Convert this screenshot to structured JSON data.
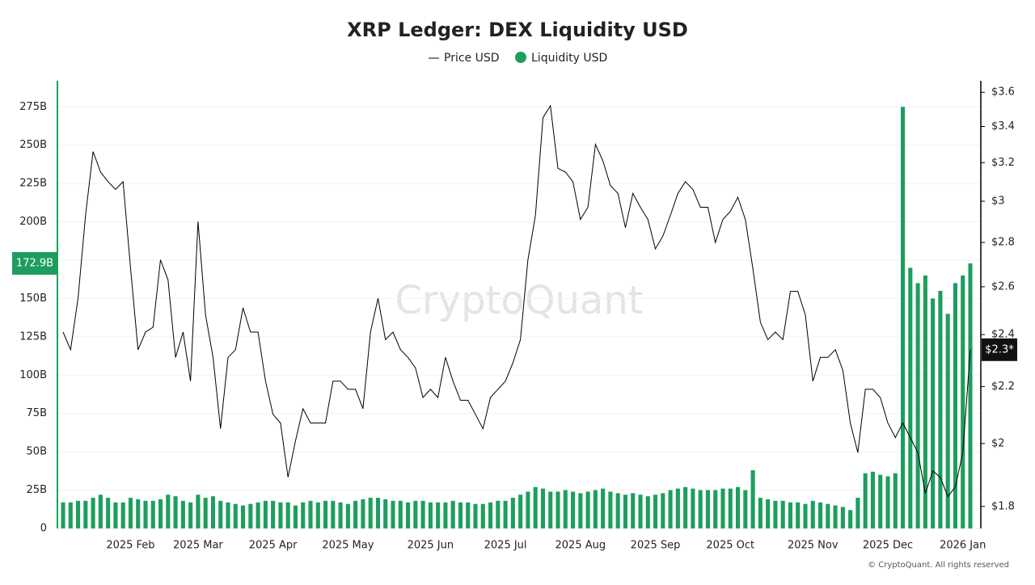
{
  "chart_data": {
    "type": "combo",
    "title": "XRP Ledger: DEX Liquidity USD",
    "watermark": "CryptoQuant",
    "footer": "© CryptoQuant. All rights reserved",
    "categories": [
      null,
      null,
      null,
      null,
      null,
      null,
      null,
      null,
      null,
      "2025 Feb",
      null,
      null,
      null,
      null,
      null,
      null,
      null,
      null,
      "2025 Mar",
      null,
      null,
      null,
      null,
      null,
      null,
      null,
      null,
      null,
      "2025 Apr",
      null,
      null,
      null,
      null,
      null,
      null,
      null,
      null,
      null,
      "2025 May",
      null,
      null,
      null,
      null,
      null,
      null,
      null,
      null,
      null,
      null,
      "2025 Jun",
      null,
      null,
      null,
      null,
      null,
      null,
      null,
      null,
      null,
      "2025 Jul",
      null,
      null,
      null,
      null,
      null,
      null,
      null,
      null,
      null,
      "2025 Aug",
      null,
      null,
      null,
      null,
      null,
      null,
      null,
      null,
      null,
      "2025 Sep",
      null,
      null,
      null,
      null,
      null,
      null,
      null,
      null,
      null,
      "2025 Oct",
      null,
      null,
      null,
      null,
      null,
      null,
      null,
      null,
      null,
      null,
      "2025 Nov",
      null,
      null,
      null,
      null,
      null,
      null,
      null,
      null,
      null,
      "2025 Dec",
      null,
      null,
      null,
      null,
      null,
      null,
      null,
      null,
      null,
      "2026 Jan",
      null
    ],
    "series": [
      {
        "name": "Price USD",
        "type": "line",
        "axis": "y2",
        "color": "#000000",
        "values": [
          2.41,
          2.34,
          2.55,
          2.93,
          3.26,
          3.15,
          3.1,
          3.06,
          3.1,
          2.68,
          2.34,
          2.41,
          2.43,
          2.72,
          2.63,
          2.31,
          2.41,
          2.22,
          2.9,
          2.48,
          2.31,
          2.05,
          2.31,
          2.34,
          2.51,
          2.41,
          2.41,
          2.22,
          2.1,
          2.07,
          1.89,
          2.01,
          2.12,
          2.07,
          2.07,
          2.07,
          2.22,
          2.22,
          2.19,
          2.19,
          2.12,
          2.41,
          2.55,
          2.38,
          2.41,
          2.34,
          2.31,
          2.27,
          2.16,
          2.19,
          2.16,
          2.31,
          2.22,
          2.15,
          2.15,
          2.1,
          2.05,
          2.16,
          2.19,
          2.22,
          2.29,
          2.38,
          2.72,
          2.93,
          3.45,
          3.52,
          3.17,
          3.15,
          3.1,
          2.91,
          2.97,
          3.3,
          3.21,
          3.08,
          3.04,
          2.87,
          3.04,
          2.97,
          2.91,
          2.77,
          2.83,
          2.93,
          3.04,
          3.1,
          3.06,
          2.97,
          2.97,
          2.8,
          2.91,
          2.95,
          3.02,
          2.91,
          2.68,
          2.45,
          2.38,
          2.41,
          2.38,
          2.58,
          2.58,
          2.48,
          2.22,
          2.31,
          2.31,
          2.34,
          2.26,
          2.07,
          1.97,
          2.19,
          2.19,
          2.16,
          2.07,
          2.02,
          2.07,
          2.02,
          1.97,
          1.84,
          1.91,
          1.89,
          1.83,
          1.86,
          1.97,
          2.34
        ]
      },
      {
        "name": "Liquidity USD",
        "type": "bar",
        "axis": "y",
        "color": "#1e9e5e",
        "values": [
          17,
          17,
          18,
          18,
          20,
          22,
          20,
          17,
          17,
          20,
          19,
          18,
          18,
          19,
          22,
          21,
          18,
          17,
          22,
          20,
          21,
          18,
          17,
          16,
          15,
          16,
          17,
          18,
          18,
          17,
          17,
          15,
          17,
          18,
          17,
          18,
          18,
          17,
          16,
          18,
          19,
          20,
          20,
          19,
          18,
          18,
          17,
          18,
          18,
          17,
          17,
          17,
          18,
          17,
          17,
          16,
          16,
          17,
          18,
          18,
          20,
          22,
          24,
          27,
          26,
          24,
          24,
          25,
          24,
          23,
          24,
          25,
          26,
          24,
          23,
          22,
          23,
          22,
          21,
          22,
          23,
          25,
          26,
          27,
          26,
          25,
          25,
          25,
          26,
          26,
          27,
          25,
          38,
          20,
          19,
          18,
          18,
          17,
          17,
          16,
          18,
          17,
          16,
          15,
          14,
          12,
          20,
          36,
          37,
          35,
          34,
          36,
          275,
          170,
          160,
          165,
          150,
          155,
          140,
          160,
          165,
          172.9
        ]
      }
    ],
    "ylim": [
      0,
      292
    ],
    "yticks": [
      {
        "value": 0,
        "label": "0"
      },
      {
        "value": 25,
        "label": "25B"
      },
      {
        "value": 50,
        "label": "50B"
      },
      {
        "value": 75,
        "label": "75B"
      },
      {
        "value": 100,
        "label": "100B"
      },
      {
        "value": 125,
        "label": "125B"
      },
      {
        "value": 150,
        "label": "150B"
      },
      {
        "value": 175,
        "label": "175B"
      },
      {
        "value": 200,
        "label": "200B"
      },
      {
        "value": 225,
        "label": "225B"
      },
      {
        "value": 250,
        "label": "250B"
      },
      {
        "value": 275,
        "label": "275B"
      }
    ],
    "y2lim": [
      1.735,
      3.67
    ],
    "y2scale": "log",
    "y2ticks": [
      {
        "value": 1.8,
        "label": "$1.8"
      },
      {
        "value": 2,
        "label": "$2"
      },
      {
        "value": 2.2,
        "label": "$2.2"
      },
      {
        "value": 2.4,
        "label": "$2.4"
      },
      {
        "value": 2.6,
        "label": "$2.6"
      },
      {
        "value": 2.8,
        "label": "$2.8"
      },
      {
        "value": 3,
        "label": "$3"
      },
      {
        "value": 3.2,
        "label": "$3.2"
      },
      {
        "value": 3.4,
        "label": "$3.4"
      },
      {
        "value": 3.6,
        "label": "$3.6"
      }
    ],
    "last_liquidity_label": "172.9B",
    "last_price_label": "$2.3*",
    "grid": true
  }
}
